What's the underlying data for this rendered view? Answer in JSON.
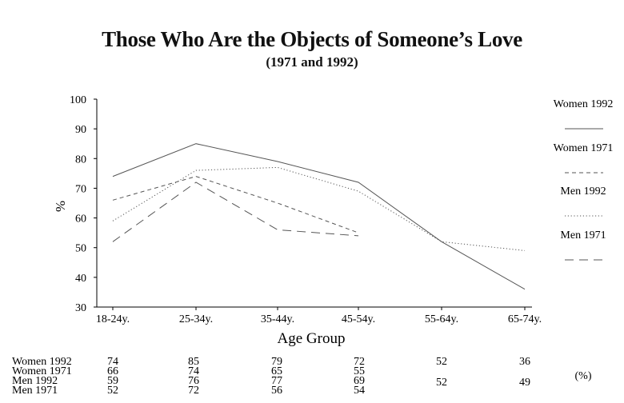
{
  "chart_data": {
    "type": "line",
    "title": "Those Who Are the Objects of Someone’s Love",
    "subtitle": "(1971 and 1992)",
    "xlabel": "Age Group",
    "ylabel": "%",
    "categories": [
      "18-24y.",
      "25-34y.",
      "35-44y.",
      "45-54y.",
      "55-64y.",
      "65-74y."
    ],
    "ylim": [
      30,
      100
    ],
    "yticks": [
      30,
      40,
      50,
      60,
      70,
      80,
      90,
      100
    ],
    "grid": false,
    "legend_position": "right",
    "series": [
      {
        "name": "Women 1992",
        "style": "solid",
        "values": [
          74,
          85,
          79,
          72,
          52,
          36
        ]
      },
      {
        "name": "Women 1971",
        "style": "dashed",
        "values": [
          66,
          74,
          65,
          55,
          null,
          null
        ]
      },
      {
        "name": "Men 1992",
        "style": "dotted",
        "values": [
          59,
          76,
          77,
          69,
          52,
          49
        ]
      },
      {
        "name": "Men 1971",
        "style": "longdash",
        "values": [
          52,
          72,
          56,
          54,
          null,
          null
        ]
      }
    ],
    "table_unit": "(%)"
  },
  "colors": {
    "line": "#555555",
    "axis": "#000000",
    "text": "#111111"
  }
}
